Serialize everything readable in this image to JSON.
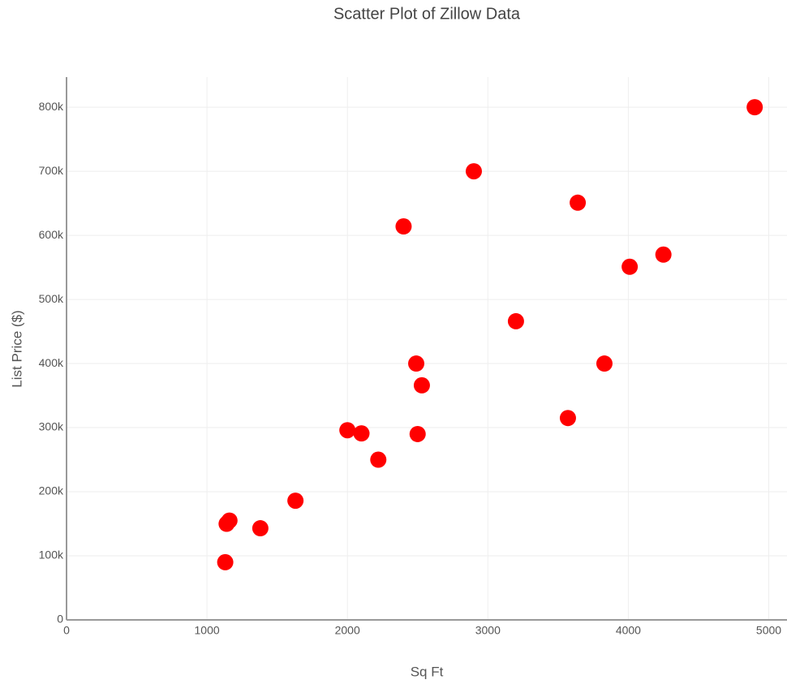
{
  "chart_data": {
    "type": "scatter",
    "title": "Scatter Plot of Zillow Data",
    "x_label": "Sq Ft",
    "y_label": "List Price ($)",
    "series": [
      {
        "color": "#ff0000",
        "x": [
          1130,
          1140,
          1160,
          1380,
          1630,
          2000,
          2100,
          2220,
          2400,
          2490,
          2500,
          2530,
          2900,
          3200,
          3570,
          3640,
          3830,
          4010,
          4250,
          4900
        ],
        "values": [
          90000,
          150000,
          155000,
          143000,
          186000,
          296000,
          291000,
          250000,
          614000,
          400000,
          290000,
          366000,
          700000,
          466000,
          315000,
          651000,
          400000,
          551000,
          570000,
          800000
        ]
      }
    ],
    "xlim": [
      0,
      5130
    ],
    "xticks": [
      0,
      1000,
      2000,
      3000,
      4000,
      5000
    ],
    "ylim": [
      0,
      847000
    ],
    "yticks": [
      0,
      {
        "value": 100000,
        "label": "100k"
      },
      {
        "value": 200000,
        "label": "200k"
      },
      {
        "value": 300000,
        "label": "300k"
      },
      {
        "value": 400000,
        "label": "400k"
      },
      {
        "value": 500000,
        "label": "500k"
      },
      {
        "value": 600000,
        "label": "600k"
      },
      {
        "value": 700000,
        "label": "700k"
      },
      {
        "value": 800000,
        "label": "800k"
      }
    ],
    "grid": true
  }
}
